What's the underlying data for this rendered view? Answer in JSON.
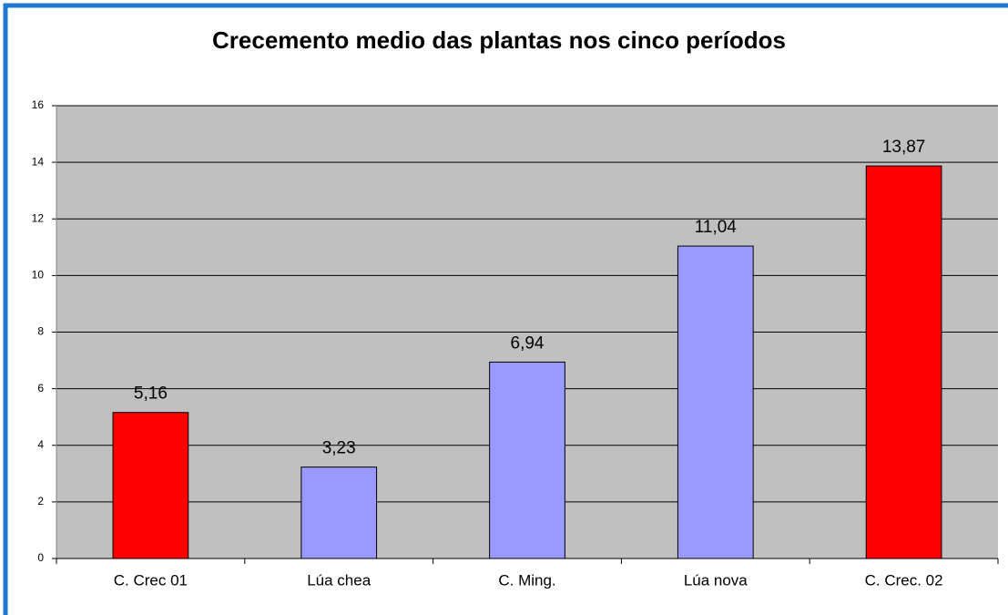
{
  "chart_data": {
    "type": "bar",
    "title": "Crecemento medio das plantas nos cinco períodos",
    "categories": [
      "C. Crec 01",
      "Lúa chea",
      "C. Ming.",
      "Lúa nova",
      "C. Crec. 02"
    ],
    "values": [
      5.16,
      3.23,
      6.94,
      11.04,
      13.87
    ],
    "value_labels": [
      "5,16",
      "3,23",
      "6,94",
      "11,04",
      "13,87"
    ],
    "colors": [
      "#ff0000",
      "#9999ff",
      "#9999ff",
      "#9999ff",
      "#ff0000"
    ],
    "ylim": [
      0,
      16
    ],
    "yticks": [
      0,
      2,
      4,
      6,
      8,
      10,
      12,
      14,
      16
    ],
    "grid": true
  }
}
